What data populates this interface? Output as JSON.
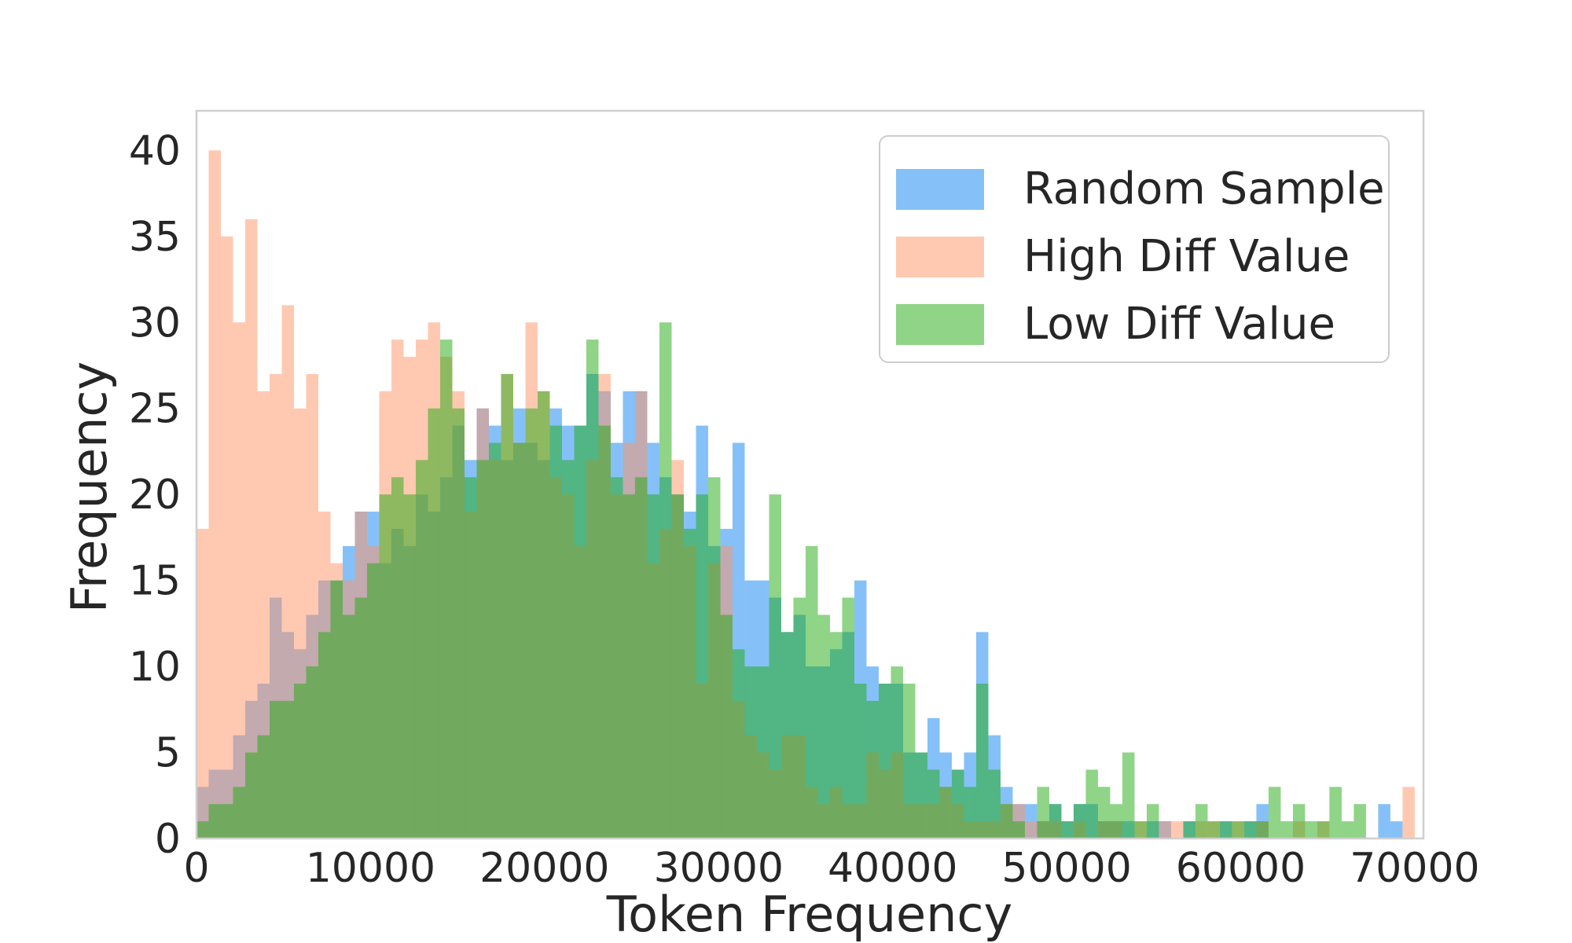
{
  "chart_data": {
    "type": "bar",
    "subtype": "overlapping-histogram",
    "title": "",
    "xlabel": "Token Frequency",
    "ylabel": "Frequency",
    "xlim": [
      0,
      70500
    ],
    "ylim": [
      0,
      42.3
    ],
    "x_ticks": [
      0,
      10000,
      20000,
      30000,
      40000,
      50000,
      60000,
      70000
    ],
    "y_ticks": [
      0,
      5,
      10,
      15,
      20,
      25,
      30,
      35,
      40
    ],
    "grid": "off",
    "legend_position": "upper right",
    "bin_width": 700,
    "bin_start": 0,
    "bar_alpha": 0.5,
    "series": [
      {
        "name": "Random Sample",
        "color": "#0b83f1",
        "display_color": "#85c1f8",
        "values": [
          3,
          4,
          4,
          6,
          8,
          9,
          14,
          12,
          11,
          13,
          15,
          15,
          17,
          19,
          19,
          16,
          18,
          17,
          20,
          19,
          21,
          24,
          22,
          25,
          24,
          22,
          25,
          23,
          22,
          25,
          24,
          24,
          27,
          26,
          23,
          26,
          26,
          23,
          21,
          20,
          19,
          24,
          17,
          18,
          23,
          15,
          15,
          14,
          12,
          13,
          10,
          10,
          11,
          12,
          15,
          10,
          9,
          9,
          5,
          5,
          7,
          5,
          4,
          5,
          12,
          6,
          3,
          2,
          2,
          1,
          2,
          1,
          2,
          2,
          1,
          1,
          1,
          0,
          1,
          1,
          0,
          1,
          0,
          0,
          1,
          0,
          1,
          2,
          0,
          0,
          0,
          0,
          0,
          0,
          0,
          0,
          0,
          2,
          1,
          0
        ]
      },
      {
        "name": "High Diff Value",
        "color": "#ff9363",
        "display_color": "#ffc9b1",
        "values": [
          18,
          40,
          35,
          30,
          36,
          26,
          27,
          31,
          25,
          27,
          19,
          16,
          15,
          19,
          17,
          26,
          29,
          28,
          29,
          30,
          28,
          26,
          19,
          25,
          22,
          27,
          23,
          30,
          26,
          21,
          20,
          17,
          22,
          27,
          20,
          23,
          26,
          16,
          18,
          22,
          17,
          9,
          16,
          17,
          8,
          6,
          5,
          4,
          6,
          6,
          3,
          2,
          3,
          2,
          2,
          5,
          4,
          5,
          2,
          2,
          2,
          3,
          2,
          1,
          1,
          1,
          2,
          2,
          1,
          1,
          1,
          0,
          1,
          0,
          1,
          1,
          0,
          1,
          0,
          1,
          1,
          0,
          1,
          1,
          0,
          1,
          0,
          1,
          0,
          0,
          1,
          0,
          1,
          0,
          0,
          0,
          0,
          0,
          0,
          3
        ]
      },
      {
        "name": "Low Diff Value",
        "color": "#1fa90f",
        "display_color": "#8fd487",
        "values": [
          1,
          2,
          2,
          3,
          5,
          6,
          8,
          8,
          9,
          10,
          12,
          15,
          13,
          14,
          16,
          20,
          21,
          20,
          22,
          25,
          29,
          25,
          21,
          22,
          23,
          27,
          23,
          25,
          26,
          24,
          22,
          24,
          29,
          24,
          21,
          20,
          21,
          20,
          30,
          20,
          18,
          20,
          21,
          13,
          11,
          10,
          10,
          20,
          12,
          14,
          17,
          13,
          12,
          14,
          9,
          8,
          9,
          10,
          9,
          5,
          4,
          3,
          4,
          3,
          9,
          4,
          2,
          1,
          0,
          3,
          2,
          1,
          2,
          4,
          3,
          2,
          5,
          1,
          2,
          0,
          0,
          1,
          2,
          1,
          1,
          1,
          1,
          1,
          3,
          1,
          2,
          1,
          1,
          3,
          1,
          2,
          0,
          0,
          0,
          0
        ]
      }
    ]
  },
  "axes": {
    "spine_color": "#cfcfcf",
    "text_color": "#262626",
    "background": "#ffffff"
  }
}
